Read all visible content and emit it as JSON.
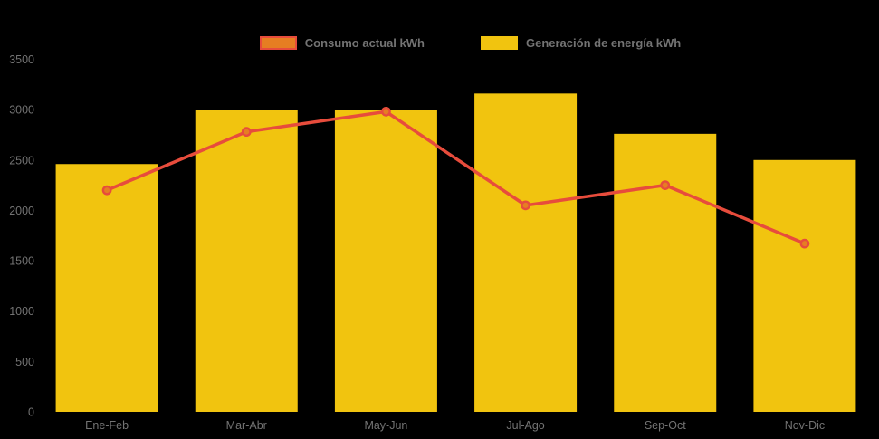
{
  "chart_data": {
    "type": "bar",
    "title": "",
    "xlabel": "",
    "ylabel": "",
    "categories": [
      "Ene-Feb",
      "Mar-Abr",
      "May-Jun",
      "Jul-Ago",
      "Sep-Oct",
      "Nov-Dic"
    ],
    "series": [
      {
        "name": "Consumo actual kWh",
        "type": "line",
        "color": "#e74c3c",
        "point_fill": "#e67e22",
        "legend_fill": "#e67e22",
        "legend_border": "#e74c3c",
        "values": [
          2200,
          2780,
          2980,
          2050,
          2250,
          1670
        ]
      },
      {
        "name": "Generación de energía kWh",
        "type": "bar",
        "color": "#f1c40f",
        "legend_fill": "#f1c40f",
        "legend_border": "#f1c40f",
        "values": [
          2460,
          3000,
          3000,
          3160,
          2760,
          2500
        ]
      }
    ],
    "ylim": [
      0,
      3500
    ],
    "yticks": [
      0,
      500,
      1000,
      1500,
      2000,
      2500,
      3000,
      3500
    ],
    "grid": false,
    "legend_position": "top",
    "background": "#000000",
    "tick_color": "#737373"
  }
}
